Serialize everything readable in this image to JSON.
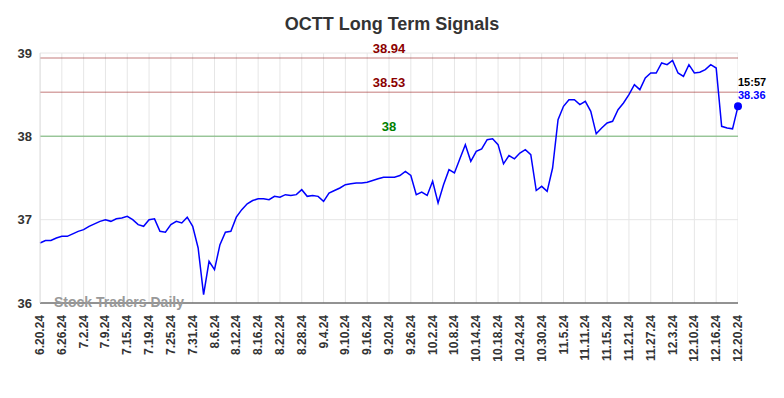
{
  "chart_data": {
    "type": "line",
    "title": "OCTT Long Term Signals",
    "watermark": "Stock Traders Daily",
    "time_label": "15:57",
    "categories": [
      "6.20.24",
      null,
      null,
      null,
      "6.26.24",
      null,
      null,
      null,
      "7.2.24",
      null,
      null,
      null,
      "7.9.24",
      null,
      null,
      null,
      "7.15.24",
      null,
      null,
      null,
      "7.19.24",
      null,
      null,
      null,
      "7.25.24",
      null,
      null,
      null,
      "7.31.24",
      null,
      null,
      null,
      "8.6.24",
      null,
      null,
      null,
      "8.12.24",
      null,
      null,
      null,
      "8.16.24",
      null,
      null,
      null,
      "8.22.24",
      null,
      null,
      null,
      "8.28.24",
      null,
      null,
      null,
      "9.4.24",
      null,
      null,
      null,
      "9.10.24",
      null,
      null,
      null,
      "9.16.24",
      null,
      null,
      null,
      "9.20.24",
      null,
      null,
      null,
      "9.26.24",
      null,
      null,
      null,
      "10.2.24",
      null,
      null,
      null,
      "10.8.24",
      null,
      null,
      null,
      "10.14.24",
      null,
      null,
      null,
      "10.18.24",
      null,
      null,
      null,
      "10.24.24",
      null,
      null,
      null,
      "10.30.24",
      null,
      null,
      null,
      "11.5.24",
      null,
      null,
      null,
      "11.11.24",
      null,
      null,
      null,
      "11.15.24",
      null,
      null,
      null,
      "11.21.24",
      null,
      null,
      null,
      "11.27.24",
      null,
      null,
      null,
      "12.3.24",
      null,
      null,
      null,
      "12.10.24",
      null,
      null,
      null,
      "12.16.24",
      null,
      null,
      null,
      "12.20.24"
    ],
    "values": [
      36.72,
      36.75,
      36.75,
      36.78,
      36.8,
      36.8,
      36.83,
      36.86,
      36.88,
      36.92,
      36.95,
      36.98,
      37.0,
      36.98,
      37.01,
      37.02,
      37.04,
      37.0,
      36.94,
      36.92,
      37.0,
      37.01,
      36.86,
      36.85,
      36.94,
      36.98,
      36.96,
      37.03,
      36.92,
      36.66,
      36.1,
      36.5,
      36.4,
      36.7,
      36.85,
      36.86,
      37.03,
      37.12,
      37.19,
      37.23,
      37.25,
      37.25,
      37.24,
      37.28,
      37.27,
      37.3,
      37.29,
      37.3,
      37.36,
      37.28,
      37.29,
      37.28,
      37.22,
      37.32,
      37.35,
      37.38,
      37.42,
      37.43,
      37.44,
      37.44,
      37.45,
      37.47,
      37.49,
      37.51,
      37.51,
      37.51,
      37.53,
      37.58,
      37.53,
      37.3,
      37.33,
      37.29,
      37.46,
      37.2,
      37.42,
      37.6,
      37.56,
      37.73,
      37.9,
      37.7,
      37.82,
      37.85,
      37.96,
      37.97,
      37.9,
      37.67,
      37.77,
      37.73,
      37.8,
      37.84,
      37.78,
      37.35,
      37.4,
      37.34,
      37.62,
      38.2,
      38.36,
      38.44,
      38.44,
      38.38,
      38.42,
      38.3,
      38.03,
      38.1,
      38.16,
      38.18,
      38.32,
      38.4,
      38.5,
      38.62,
      38.56,
      38.7,
      38.76,
      38.76,
      38.88,
      38.86,
      38.91,
      38.76,
      38.72,
      38.86,
      38.76,
      38.77,
      38.8,
      38.86,
      38.82,
      38.12,
      38.1,
      38.09,
      38.36
    ],
    "color": "#0000ff",
    "ylim": [
      36,
      39
    ],
    "yticks": [
      36,
      37,
      38,
      39
    ],
    "grid": true,
    "reference_lines": [
      {
        "value": 38.94,
        "color": "#8b0000"
      },
      {
        "value": 38.53,
        "color": "#8b0000"
      },
      {
        "value": 38,
        "color": "#008000"
      }
    ]
  }
}
